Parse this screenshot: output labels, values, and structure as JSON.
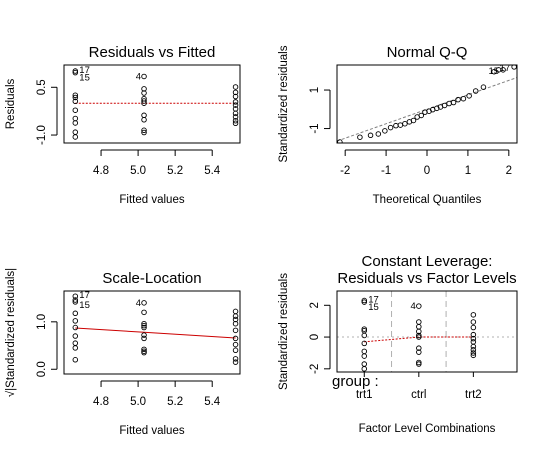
{
  "figure": {
    "background": "#ffffff",
    "point_color": "#000000",
    "smooth_color": "#cc0000",
    "reference_line_color": "#808080"
  },
  "chart_data": [
    {
      "type": "scatter",
      "title": "Residuals vs Fitted",
      "xlabel": "Fitted values",
      "ylabel": "Residuals",
      "xlim": [
        4.6,
        5.55
      ],
      "ylim": [
        -1.25,
        1.2
      ],
      "xticks": [
        "4.8",
        "5.0",
        "5.2",
        "5.4"
      ],
      "yticks": [
        "-1.0",
        "0.5"
      ],
      "xtick_values": [
        4.8,
        5.0,
        5.2,
        5.4
      ],
      "ytick_values": [
        -1.0,
        0.5
      ],
      "points": [
        [
          4.661,
          1.01
        ],
        [
          4.661,
          0.96
        ],
        [
          4.661,
          0.25
        ],
        [
          4.661,
          0.18
        ],
        [
          4.661,
          0.06
        ],
        [
          4.661,
          -0.22
        ],
        [
          4.661,
          -0.48
        ],
        [
          4.661,
          -0.62
        ],
        [
          4.661,
          -0.91
        ],
        [
          4.661,
          -1.06
        ],
        [
          5.032,
          0.84
        ],
        [
          5.032,
          0.45
        ],
        [
          5.032,
          0.32
        ],
        [
          5.032,
          0.14
        ],
        [
          5.032,
          0.07
        ],
        [
          5.032,
          0.0
        ],
        [
          5.032,
          -0.38
        ],
        [
          5.032,
          -0.52
        ],
        [
          5.032,
          -0.85
        ],
        [
          5.032,
          -0.92
        ],
        [
          5.526,
          0.51
        ],
        [
          5.526,
          0.34
        ],
        [
          5.526,
          0.21
        ],
        [
          5.526,
          0.04
        ],
        [
          5.526,
          -0.06
        ],
        [
          5.526,
          -0.18
        ],
        [
          5.526,
          -0.32
        ],
        [
          5.526,
          -0.43
        ],
        [
          5.526,
          -0.55
        ],
        [
          5.526,
          -0.63
        ]
      ],
      "smooth": [
        [
          4.661,
          0.0
        ],
        [
          5.032,
          0.0
        ],
        [
          5.526,
          0.0
        ]
      ],
      "smooth_color": "#cc0000",
      "annotations": [
        {
          "label": "17",
          "x": 4.661,
          "y": 1.01
        },
        {
          "label": "15",
          "x": 4.661,
          "y": 0.96
        },
        {
          "label": "4",
          "x": 5.032,
          "y": 0.84
        }
      ]
    },
    {
      "type": "scatter",
      "title": "Normal Q-Q",
      "xlabel": "Theoretical Quantiles",
      "ylabel": "Standardized residuals",
      "xlim": [
        -2.2,
        2.2
      ],
      "ylim": [
        -1.75,
        2.3
      ],
      "xticks": [
        "-2",
        "-1",
        "0",
        "1",
        "2"
      ],
      "yticks": [
        "-1",
        "1"
      ],
      "xtick_values": [
        -2,
        -1,
        0,
        1,
        2
      ],
      "ytick_values": [
        -1,
        1
      ],
      "points": [
        [
          -2.13,
          -1.7
        ],
        [
          -1.64,
          -1.45
        ],
        [
          -1.38,
          -1.35
        ],
        [
          -1.19,
          -1.28
        ],
        [
          -1.03,
          -1.12
        ],
        [
          -0.89,
          -0.95
        ],
        [
          -0.76,
          -0.85
        ],
        [
          -0.65,
          -0.82
        ],
        [
          -0.54,
          -0.75
        ],
        [
          -0.43,
          -0.65
        ],
        [
          -0.33,
          -0.58
        ],
        [
          -0.24,
          -0.4
        ],
        [
          -0.14,
          -0.32
        ],
        [
          -0.05,
          -0.15
        ],
        [
          0.05,
          -0.1
        ],
        [
          0.14,
          -0.02
        ],
        [
          0.24,
          0.05
        ],
        [
          0.33,
          0.12
        ],
        [
          0.43,
          0.2
        ],
        [
          0.54,
          0.3
        ],
        [
          0.65,
          0.35
        ],
        [
          0.76,
          0.5
        ],
        [
          0.89,
          0.55
        ],
        [
          1.03,
          0.7
        ],
        [
          1.19,
          0.95
        ],
        [
          1.38,
          1.15
        ],
        [
          1.64,
          1.95
        ],
        [
          1.75,
          2.05
        ],
        [
          1.86,
          2.05
        ],
        [
          2.13,
          2.2
        ]
      ],
      "reference_line": [
        [
          -2.2,
          -1.65
        ],
        [
          2.2,
          1.65
        ]
      ],
      "reference_line_color": "#808080",
      "annotations": [
        {
          "label": "17",
          "x": 2.13,
          "y": 2.2
        },
        {
          "label": "15",
          "x": 1.86,
          "y": 2.05
        }
      ]
    },
    {
      "type": "scatter",
      "title": "Scale-Location",
      "xlabel": "Fitted values",
      "ylabel": "√|Standardized residuals|",
      "xlim": [
        4.6,
        5.55
      ],
      "ylim": [
        -0.1,
        1.65
      ],
      "xticks": [
        "4.8",
        "5.0",
        "5.2",
        "5.4"
      ],
      "yticks": [
        "0.0",
        "1.0"
      ],
      "xtick_values": [
        4.8,
        5.0,
        5.2,
        5.4
      ],
      "ytick_values": [
        0.0,
        1.0
      ],
      "points": [
        [
          4.661,
          1.54
        ],
        [
          4.661,
          1.46
        ],
        [
          4.661,
          1.42
        ],
        [
          4.661,
          1.18
        ],
        [
          4.661,
          1.02
        ],
        [
          4.661,
          0.88
        ],
        [
          4.661,
          0.7
        ],
        [
          4.661,
          0.55
        ],
        [
          4.661,
          0.45
        ],
        [
          4.661,
          0.2
        ],
        [
          5.032,
          1.4
        ],
        [
          5.032,
          1.2
        ],
        [
          5.032,
          0.96
        ],
        [
          5.032,
          0.92
        ],
        [
          5.032,
          0.88
        ],
        [
          5.032,
          0.72
        ],
        [
          5.032,
          0.65
        ],
        [
          5.032,
          0.42
        ],
        [
          5.032,
          0.38
        ],
        [
          5.032,
          0.35
        ],
        [
          5.526,
          1.22
        ],
        [
          5.526,
          1.12
        ],
        [
          5.526,
          1.05
        ],
        [
          5.526,
          0.96
        ],
        [
          5.526,
          0.82
        ],
        [
          5.526,
          0.65
        ],
        [
          5.526,
          0.52
        ],
        [
          5.526,
          0.4
        ],
        [
          5.526,
          0.22
        ],
        [
          5.526,
          0.15
        ]
      ],
      "smooth": [
        [
          4.661,
          0.87
        ],
        [
          5.032,
          0.78
        ],
        [
          5.526,
          0.66
        ]
      ],
      "smooth_color": "#cc0000",
      "annotations": [
        {
          "label": "17",
          "x": 4.661,
          "y": 1.54
        },
        {
          "label": "15",
          "x": 4.661,
          "y": 1.46
        },
        {
          "label": "4",
          "x": 5.032,
          "y": 1.4
        }
      ]
    },
    {
      "type": "scatter",
      "title": "Constant Leverage:",
      "subtitle": "Residuals vs Factor Levels",
      "xlabel": "Factor Level Combinations",
      "ylabel": "Standardized residuals",
      "factor_label": "group :",
      "xlim": [
        0.5,
        3.8
      ],
      "ylim": [
        -2.2,
        2.9
      ],
      "categories": [
        "trt1",
        "ctrl",
        "trt2"
      ],
      "category_positions": [
        1.0,
        2.0,
        3.0
      ],
      "yticks": [
        "-2",
        "0",
        "2"
      ],
      "ytick_values": [
        -2,
        0,
        2
      ],
      "group_dividers": [
        1.5,
        2.5
      ],
      "points": [
        [
          1.0,
          2.3
        ],
        [
          1.0,
          2.2
        ],
        [
          1.0,
          0.5
        ],
        [
          1.0,
          0.4
        ],
        [
          1.0,
          0.1
        ],
        [
          1.0,
          -0.4
        ],
        [
          1.0,
          -0.9
        ],
        [
          1.0,
          -1.2
        ],
        [
          1.0,
          -1.7
        ],
        [
          1.0,
          -2.0
        ],
        [
          2.0,
          1.95
        ],
        [
          2.0,
          0.95
        ],
        [
          2.0,
          0.65
        ],
        [
          2.0,
          0.35
        ],
        [
          2.0,
          0.1
        ],
        [
          2.0,
          0.0
        ],
        [
          2.0,
          -0.7
        ],
        [
          2.0,
          -0.95
        ],
        [
          2.0,
          -1.6
        ],
        [
          2.0,
          -1.7
        ],
        [
          3.0,
          1.4
        ],
        [
          3.0,
          0.95
        ],
        [
          3.0,
          0.6
        ],
        [
          3.0,
          0.15
        ],
        [
          3.0,
          -0.1
        ],
        [
          3.0,
          -0.3
        ],
        [
          3.0,
          -0.6
        ],
        [
          3.0,
          -0.8
        ],
        [
          3.0,
          -1.0
        ],
        [
          3.0,
          -1.15
        ]
      ],
      "smooth": [
        [
          1.0,
          -0.3
        ],
        [
          2.0,
          0.0
        ],
        [
          3.0,
          0.0
        ]
      ],
      "smooth_color": "#cc0000",
      "annotations": [
        {
          "label": "17",
          "x": 1.0,
          "y": 2.3
        },
        {
          "label": "15",
          "x": 1.0,
          "y": 2.2
        },
        {
          "label": "4",
          "x": 2.0,
          "y": 1.95
        }
      ]
    }
  ]
}
